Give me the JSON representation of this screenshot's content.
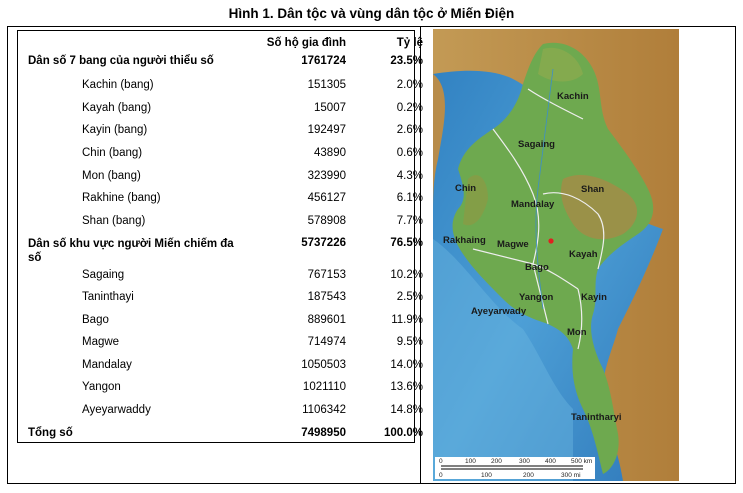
{
  "title": "Hình 1. Dân tộc và vùng dân tộc ở Miến Điện",
  "table": {
    "headers": {
      "population": "Số hộ gia đình",
      "ratio": "Tỷ lệ"
    },
    "rows": [
      {
        "name": "Dân số 7 bang của người thiểu số",
        "population": "1761724",
        "ratio": "23.5%",
        "bold": true
      },
      {
        "name": "Kachin (bang)",
        "population": "151305",
        "ratio": "2.0%"
      },
      {
        "name": "Kayah (bang)",
        "population": "15007",
        "ratio": "0.2%"
      },
      {
        "name": "Kayin (bang)",
        "population": "192497",
        "ratio": "2.6%"
      },
      {
        "name": "Chin (bang)",
        "population": "43890",
        "ratio": "0.6%"
      },
      {
        "name": "Mon (bang)",
        "population": "323990",
        "ratio": "4.3%"
      },
      {
        "name": "Rakhine (bang)",
        "population": "456127",
        "ratio": "6.1%"
      },
      {
        "name": "Shan (bang)",
        "population": "578908",
        "ratio": "7.7%"
      },
      {
        "name": "Dân số khu vực người Miến chiếm đa số",
        "population": "5737226",
        "ratio": "76.5%",
        "bold": true
      },
      {
        "name": "Sagaing",
        "population": "767153",
        "ratio": "10.2%"
      },
      {
        "name": "Taninthayi",
        "population": "187543",
        "ratio": "2.5%"
      },
      {
        "name": "Bago",
        "population": "889601",
        "ratio": "11.9%"
      },
      {
        "name": "Magwe",
        "population": "714974",
        "ratio": "9.5%"
      },
      {
        "name": "Mandalay",
        "population": "1050503",
        "ratio": "14.0%"
      },
      {
        "name": "Yangon",
        "population": "1021110",
        "ratio": "13.6%"
      },
      {
        "name": "Ayeyarwaddy",
        "population": "1106342",
        "ratio": "14.8%"
      },
      {
        "name": "Tổng số",
        "population": "7498950",
        "ratio": "100.0%",
        "bold": true
      }
    ]
  },
  "map": {
    "labels": {
      "kachin": "Kachin",
      "sagaing": "Sagaing",
      "chin": "Chin",
      "shan": "Shan",
      "mandalay": "Mandalay",
      "magwe": "Magwe",
      "rakhaing": "Rakhaing",
      "kayah": "Kayah",
      "bago": "Bago",
      "yangon": "Yangon",
      "kayin": "Kayin",
      "ayeyarwady": "Ayeyarwady",
      "mon": "Mon",
      "tanintharyi": "Tanintharyi"
    },
    "scale": {
      "km_ticks": [
        "0",
        "100",
        "200",
        "300",
        "400",
        "500 km"
      ],
      "mi_ticks": [
        "0",
        "100",
        "200",
        "300 mi"
      ]
    },
    "colors": {
      "sea": "#3d8fc8",
      "land_low": "#5f9c4a",
      "land_high": "#b8893f",
      "border": "#e8e8e8"
    }
  }
}
